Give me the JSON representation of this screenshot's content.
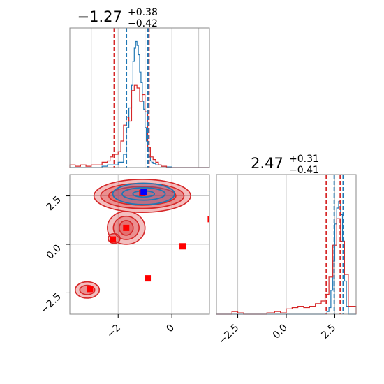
{
  "chart_data": [
    {
      "panel": "marginal-param-1",
      "type": "histogram",
      "title": {
        "median": "−1.27",
        "plus": "+0.38",
        "minus": "−0.42"
      },
      "xlim": [
        -3.8,
        1.4
      ],
      "ylim": [
        0,
        1.0
      ],
      "series": [
        {
          "color": "#1f77b4",
          "bin_edges": [
            -3.8,
            -2.6,
            -2.4,
            -2.2,
            -2.0,
            -1.8,
            -1.7,
            -1.6,
            -1.5,
            -1.45,
            -1.4,
            -1.35,
            -1.3,
            -1.25,
            -1.2,
            -1.15,
            -1.1,
            -1.05,
            -1.0,
            -0.95,
            -0.9,
            -0.85,
            -0.8,
            -0.75,
            -0.7,
            -0.6,
            -0.4,
            -0.2,
            0.0,
            1.4
          ],
          "heights": [
            0.0,
            0.01,
            0.02,
            0.02,
            0.04,
            0.1,
            0.3,
            0.45,
            0.62,
            0.8,
            0.9,
            0.95,
            0.92,
            0.85,
            0.72,
            0.64,
            0.5,
            0.44,
            0.3,
            0.2,
            0.12,
            0.08,
            0.05,
            0.04,
            0.03,
            0.02,
            0.01,
            0.005,
            0.0
          ]
        },
        {
          "color": "#d62728",
          "bin_edges": [
            -3.8,
            -3.6,
            -3.4,
            -3.2,
            -3.0,
            -2.8,
            -2.6,
            -2.4,
            -2.3,
            -2.2,
            -2.1,
            -2.0,
            -1.9,
            -1.8,
            -1.7,
            -1.6,
            -1.5,
            -1.4,
            -1.3,
            -1.2,
            -1.1,
            -1.0,
            -0.9,
            -0.8,
            -0.7,
            -0.6,
            -0.5,
            -0.4,
            -0.2,
            1.4
          ],
          "heights": [
            0.02,
            0.01,
            0.02,
            0.01,
            0.02,
            0.02,
            0.04,
            0.05,
            0.08,
            0.1,
            0.1,
            0.12,
            0.2,
            0.32,
            0.38,
            0.35,
            0.58,
            0.62,
            0.6,
            0.5,
            0.55,
            0.42,
            0.15,
            0.08,
            0.06,
            0.04,
            0.02,
            0.01,
            0.0
          ]
        }
      ],
      "quantile_lines": [
        {
          "color": "#d62728",
          "x": [
            -2.15,
            -0.85
          ]
        },
        {
          "color": "#1f77b4",
          "x": [
            -1.69,
            -0.89
          ]
        }
      ]
    },
    {
      "panel": "marginal-param-2",
      "type": "histogram",
      "title": {
        "median": "2.47",
        "plus": "+0.31",
        "minus": "−0.41"
      },
      "xlim": [
        -3.6,
        3.6
      ],
      "ylim": [
        0,
        1.0
      ],
      "xticks": [
        -2.5,
        0.0,
        2.5
      ],
      "xtick_labels": [
        "−2.5",
        "0.0",
        "2.5"
      ],
      "series": [
        {
          "color": "#1f77b4",
          "bin_edges": [
            -3.6,
            2.1,
            2.2,
            2.3,
            2.4,
            2.5,
            2.6,
            2.7,
            2.8,
            2.9,
            3.0,
            3.1,
            3.2,
            3.6
          ],
          "heights": [
            0.0,
            0.02,
            0.05,
            0.18,
            0.4,
            0.68,
            0.8,
            0.85,
            0.75,
            0.55,
            0.25,
            0.06,
            0.0
          ]
        },
        {
          "color": "#d62728",
          "bin_edges": [
            -3.6,
            -2.8,
            -2.5,
            -2.2,
            -1.8,
            -1.0,
            -0.6,
            -0.3,
            0.0,
            0.3,
            0.6,
            0.9,
            1.2,
            1.5,
            1.8,
            2.0,
            2.2,
            2.4,
            2.6,
            2.8,
            3.0,
            3.2,
            3.6
          ],
          "heights": [
            0.0,
            0.02,
            0.01,
            0.0,
            0.0,
            0.01,
            0.02,
            0.01,
            0.04,
            0.05,
            0.06,
            0.05,
            0.06,
            0.08,
            0.1,
            0.15,
            0.28,
            0.52,
            0.72,
            0.55,
            0.3,
            0.06
          ]
        }
      ],
      "quantile_lines": [
        {
          "color": "#d62728",
          "x": [
            2.06,
            2.78
          ]
        },
        {
          "color": "#1f77b4",
          "x": [
            2.47,
            2.93
          ]
        }
      ]
    },
    {
      "panel": "joint-2d",
      "type": "contour-scatter",
      "xlim": [
        -3.8,
        1.4
      ],
      "ylim": [
        -3.6,
        3.6
      ],
      "xticks": [
        -2,
        0
      ],
      "xtick_labels": [
        "−2",
        "0"
      ],
      "yticks": [
        -2.5,
        0.0,
        2.5
      ],
      "ytick_labels": [
        "−2.5",
        "0.0",
        "2.5"
      ],
      "red_contours": [
        {
          "cx": -1.1,
          "cy": 2.5,
          "levels": [
            [
              1.8,
              0.85
            ],
            [
              1.55,
              0.65
            ],
            [
              1.25,
              0.48
            ]
          ]
        },
        {
          "cx": -1.7,
          "cy": 0.85,
          "levels": [
            [
              0.7,
              0.85
            ],
            [
              0.48,
              0.6
            ],
            [
              0.26,
              0.38
            ]
          ]
        },
        {
          "cx": -2.15,
          "cy": 0.3,
          "levels": [
            [
              0.22,
              0.25
            ]
          ]
        },
        {
          "cx": -3.15,
          "cy": -2.35,
          "levels": [
            [
              0.45,
              0.42
            ],
            [
              0.28,
              0.24
            ]
          ]
        }
      ],
      "blue_contours": [
        {
          "cx": -1.05,
          "cy": 2.6,
          "levels": [
            [
              1.15,
              0.55
            ],
            [
              0.8,
              0.32
            ],
            [
              0.4,
              0.16
            ]
          ]
        }
      ],
      "red_squares": [
        {
          "x": -1.1,
          "y": 2.65
        },
        {
          "x": -1.7,
          "y": 0.85
        },
        {
          "x": -2.2,
          "y": 0.25
        },
        {
          "x": 0.4,
          "y": -0.1
        },
        {
          "x": -0.9,
          "y": -1.75
        },
        {
          "x": -3.05,
          "y": -2.3
        },
        {
          "x": 1.45,
          "y": 1.3
        }
      ],
      "blue_square": {
        "x": -1.05,
        "y": 2.7
      }
    }
  ]
}
